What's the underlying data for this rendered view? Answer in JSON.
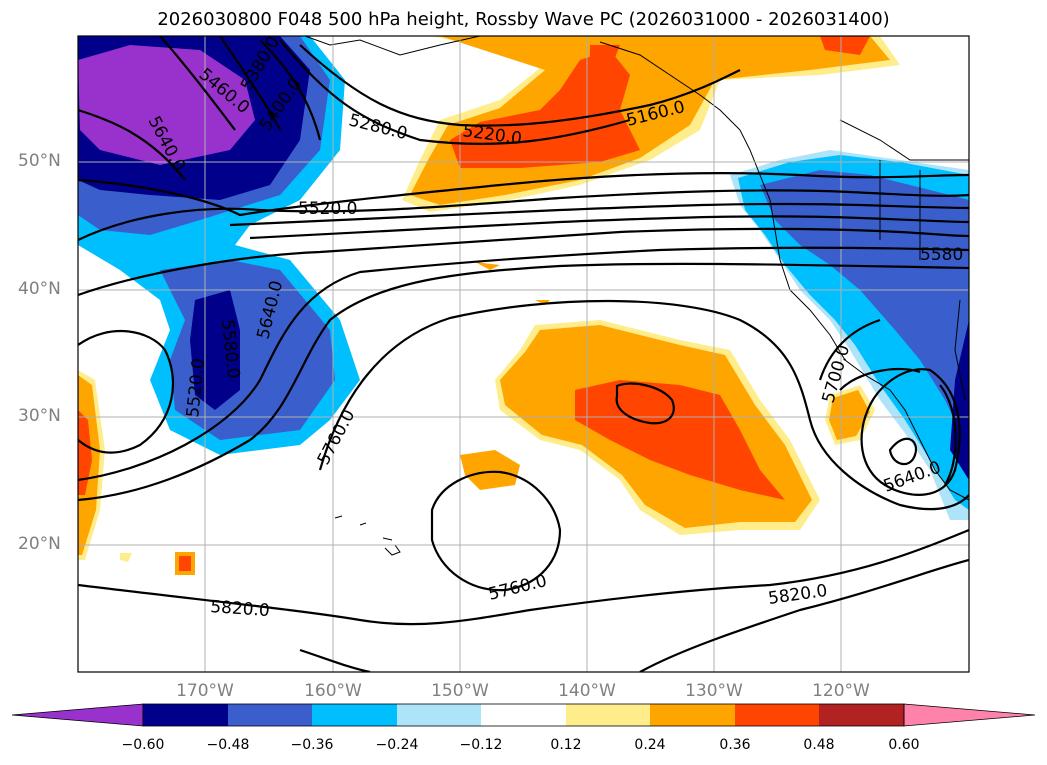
{
  "title": "2026030800 F048 500 hPa height, Rossby Wave PC (2026031000 - 2026031400)",
  "lat_labels": [
    "50°N",
    "40°N",
    "30°N",
    "20°N"
  ],
  "lon_labels": [
    "170°W",
    "160°W",
    "150°W",
    "140°W",
    "130°W",
    "120°W"
  ],
  "contour_labels": {
    "c5460": "5460.0",
    "c5380": "5380.0",
    "c5400": "5400.0",
    "c5640a": "5640.0",
    "c5280": "5280.0",
    "c5220": "5220.0",
    "c5160": "5160.0",
    "c5520a": "5520.0",
    "c5580a": "5580",
    "c5640b": "5640.0",
    "c5580b": "5580.0",
    "c5520b": "5520.0",
    "c5760a": "5760.0",
    "c5700": "5700.0",
    "c5640c": "5640.0",
    "c5760b": "5760.0",
    "c5820a": "5820.0",
    "c5820b": "5820.0"
  },
  "colorbar": {
    "ticks": [
      "−0.60",
      "−0.48",
      "−0.36",
      "−0.24",
      "−0.12",
      "0.12",
      "0.24",
      "0.36",
      "0.48",
      "0.60"
    ],
    "colors": [
      "#9932cc",
      "#00008b",
      "#3a5fcd",
      "#00bfff",
      "#aee4fa",
      "#ffffff",
      "#ffec8b",
      "#ffa500",
      "#ff4500",
      "#b22222",
      "#ff82ab"
    ]
  }
}
